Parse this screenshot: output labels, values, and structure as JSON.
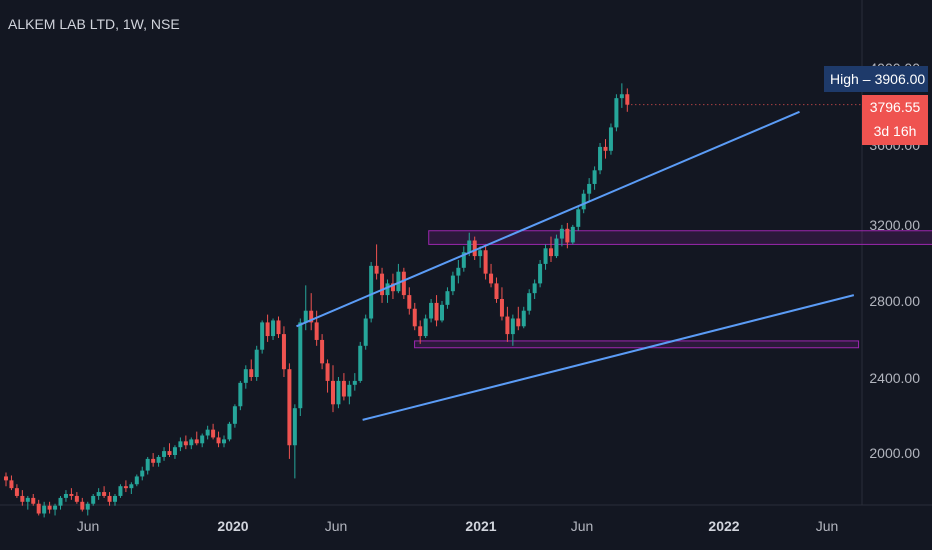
{
  "header": {
    "title": "ALKEM LAB LTD, 1W, NSE"
  },
  "price_axis": {
    "ticks": [
      "4000.00",
      "3600.00",
      "3200.00",
      "2800.00",
      "2400.00",
      "2000.00"
    ]
  },
  "time_axis": {
    "ticks": [
      {
        "label": "Jun",
        "bold": false
      },
      {
        "label": "2020",
        "bold": true
      },
      {
        "label": "Jun",
        "bold": false
      },
      {
        "label": "2021",
        "bold": true
      },
      {
        "label": "Jun",
        "bold": false
      },
      {
        "label": "2022",
        "bold": true
      },
      {
        "label": "Jun",
        "bold": false
      }
    ]
  },
  "high_marker": {
    "label": "High",
    "value": "3906.00"
  },
  "last_price": {
    "value": "3796.55",
    "countdown": "3d 16h"
  },
  "colors": {
    "background": "#131722",
    "up": "#26a69a",
    "down": "#ef5350",
    "trendline": "#5b9cf6",
    "zone_border": "#9c27b0",
    "high_tag": "#1e3a6a"
  },
  "chart_data": {
    "type": "candlestick",
    "title": "ALKEM LAB LTD, 1W, NSE",
    "interval": "1W",
    "exchange": "NSE",
    "x_start": "2019-01",
    "x_end": "2022-07",
    "ylim": [
      1650,
      4050
    ],
    "series": [
      {
        "name": "ALKEM LAB LTD",
        "values": [
          [
            1890,
            1910,
            1840,
            1870
          ],
          [
            1870,
            1895,
            1820,
            1830
          ],
          [
            1830,
            1850,
            1780,
            1790
          ],
          [
            1790,
            1820,
            1740,
            1760
          ],
          [
            1760,
            1790,
            1720,
            1780
          ],
          [
            1780,
            1800,
            1740,
            1750
          ],
          [
            1750,
            1770,
            1690,
            1700
          ],
          [
            1700,
            1760,
            1680,
            1740
          ],
          [
            1740,
            1760,
            1700,
            1720
          ],
          [
            1720,
            1750,
            1690,
            1740
          ],
          [
            1740,
            1790,
            1720,
            1780
          ],
          [
            1780,
            1820,
            1760,
            1800
          ],
          [
            1800,
            1830,
            1770,
            1790
          ],
          [
            1790,
            1810,
            1750,
            1760
          ],
          [
            1760,
            1780,
            1710,
            1720
          ],
          [
            1720,
            1760,
            1690,
            1750
          ],
          [
            1750,
            1800,
            1740,
            1790
          ],
          [
            1790,
            1830,
            1770,
            1810
          ],
          [
            1810,
            1840,
            1780,
            1790
          ],
          [
            1790,
            1810,
            1740,
            1760
          ],
          [
            1760,
            1800,
            1740,
            1790
          ],
          [
            1790,
            1850,
            1780,
            1840
          ],
          [
            1840,
            1870,
            1810,
            1830
          ],
          [
            1830,
            1860,
            1800,
            1850
          ],
          [
            1850,
            1900,
            1840,
            1890
          ],
          [
            1890,
            1940,
            1870,
            1920
          ],
          [
            1920,
            1990,
            1900,
            1980
          ],
          [
            1980,
            2010,
            1940,
            1960
          ],
          [
            1960,
            2000,
            1940,
            1990
          ],
          [
            1990,
            2040,
            1970,
            2020
          ],
          [
            2020,
            2060,
            1990,
            2000
          ],
          [
            2000,
            2050,
            1980,
            2040
          ],
          [
            2040,
            2090,
            2020,
            2070
          ],
          [
            2070,
            2100,
            2030,
            2050
          ],
          [
            2050,
            2090,
            2030,
            2080
          ],
          [
            2080,
            2120,
            2050,
            2060
          ],
          [
            2060,
            2110,
            2040,
            2100
          ],
          [
            2100,
            2150,
            2080,
            2130
          ],
          [
            2130,
            2160,
            2080,
            2090
          ],
          [
            2090,
            2120,
            2040,
            2060
          ],
          [
            2060,
            2100,
            2040,
            2080
          ],
          [
            2080,
            2170,
            2070,
            2160
          ],
          [
            2160,
            2260,
            2140,
            2250
          ],
          [
            2250,
            2380,
            2230,
            2370
          ],
          [
            2370,
            2460,
            2340,
            2440
          ],
          [
            2440,
            2490,
            2380,
            2400
          ],
          [
            2400,
            2560,
            2380,
            2540
          ],
          [
            2540,
            2690,
            2520,
            2680
          ],
          [
            2680,
            2720,
            2580,
            2610
          ],
          [
            2610,
            2700,
            2590,
            2690
          ],
          [
            2690,
            2710,
            2600,
            2620
          ],
          [
            2620,
            2660,
            2400,
            2440
          ],
          [
            2440,
            2470,
            1980,
            2050
          ],
          [
            2050,
            2260,
            1880,
            2240
          ],
          [
            2240,
            2700,
            2200,
            2680
          ],
          [
            2680,
            2870,
            2640,
            2740
          ],
          [
            2740,
            2830,
            2640,
            2680
          ],
          [
            2680,
            2740,
            2560,
            2590
          ],
          [
            2590,
            2620,
            2440,
            2470
          ],
          [
            2470,
            2490,
            2320,
            2380
          ],
          [
            2380,
            2460,
            2220,
            2260
          ],
          [
            2260,
            2400,
            2240,
            2380
          ],
          [
            2380,
            2420,
            2280,
            2300
          ],
          [
            2300,
            2380,
            2260,
            2360
          ],
          [
            2360,
            2420,
            2330,
            2380
          ],
          [
            2380,
            2580,
            2370,
            2560
          ],
          [
            2560,
            2720,
            2540,
            2700
          ],
          [
            2700,
            2990,
            2680,
            2970
          ],
          [
            2970,
            3080,
            2900,
            2930
          ],
          [
            2930,
            2960,
            2780,
            2820
          ],
          [
            2820,
            2900,
            2780,
            2880
          ],
          [
            2880,
            2930,
            2800,
            2840
          ],
          [
            2840,
            2980,
            2830,
            2940
          ],
          [
            2940,
            2960,
            2800,
            2820
          ],
          [
            2820,
            2860,
            2720,
            2750
          ],
          [
            2750,
            2780,
            2640,
            2660
          ],
          [
            2660,
            2690,
            2570,
            2610
          ],
          [
            2610,
            2720,
            2600,
            2700
          ],
          [
            2700,
            2800,
            2680,
            2780
          ],
          [
            2780,
            2820,
            2660,
            2690
          ],
          [
            2690,
            2790,
            2680,
            2770
          ],
          [
            2770,
            2860,
            2750,
            2840
          ],
          [
            2840,
            2940,
            2820,
            2920
          ],
          [
            2920,
            3000,
            2880,
            2960
          ],
          [
            2960,
            3070,
            2940,
            3040
          ],
          [
            3040,
            3140,
            3020,
            3100
          ],
          [
            3100,
            3120,
            3000,
            3020
          ],
          [
            3020,
            3070,
            2960,
            3050
          ],
          [
            3050,
            3080,
            2900,
            2930
          ],
          [
            2930,
            2980,
            2860,
            2880
          ],
          [
            2880,
            2910,
            2780,
            2800
          ],
          [
            2800,
            2860,
            2690,
            2710
          ],
          [
            2710,
            2760,
            2580,
            2620
          ],
          [
            2620,
            2720,
            2560,
            2700
          ],
          [
            2700,
            2760,
            2640,
            2660
          ],
          [
            2660,
            2760,
            2650,
            2740
          ],
          [
            2740,
            2850,
            2720,
            2830
          ],
          [
            2830,
            2900,
            2800,
            2880
          ],
          [
            2880,
            3000,
            2860,
            2980
          ],
          [
            2980,
            3080,
            2950,
            3060
          ],
          [
            3060,
            3120,
            2990,
            3020
          ],
          [
            3020,
            3130,
            3010,
            3110
          ],
          [
            3110,
            3180,
            3070,
            3160
          ],
          [
            3160,
            3190,
            3060,
            3090
          ],
          [
            3090,
            3180,
            3080,
            3170
          ],
          [
            3170,
            3280,
            3150,
            3260
          ],
          [
            3260,
            3360,
            3240,
            3340
          ],
          [
            3340,
            3420,
            3300,
            3390
          ],
          [
            3390,
            3480,
            3360,
            3460
          ],
          [
            3460,
            3600,
            3440,
            3580
          ],
          [
            3580,
            3620,
            3520,
            3560
          ],
          [
            3560,
            3700,
            3540,
            3680
          ],
          [
            3680,
            3850,
            3660,
            3830
          ],
          [
            3830,
            3906,
            3780,
            3850
          ],
          [
            3850,
            3880,
            3760,
            3796.55
          ]
        ]
      }
    ],
    "trendlines": [
      {
        "points": [
          [
            12.3,
            2660
          ],
          [
            33.6,
            3760
          ]
        ]
      },
      {
        "points": [
          [
            15.1,
            2180
          ],
          [
            35.9,
            2820
          ]
        ]
      }
    ],
    "zones": [
      {
        "x": [
          17.9,
          43.2
        ],
        "y": [
          3080,
          3150
        ]
      },
      {
        "x": [
          17.3,
          36.1
        ],
        "y": [
          2550,
          2585
        ]
      }
    ],
    "legend": "none",
    "grid": false
  }
}
